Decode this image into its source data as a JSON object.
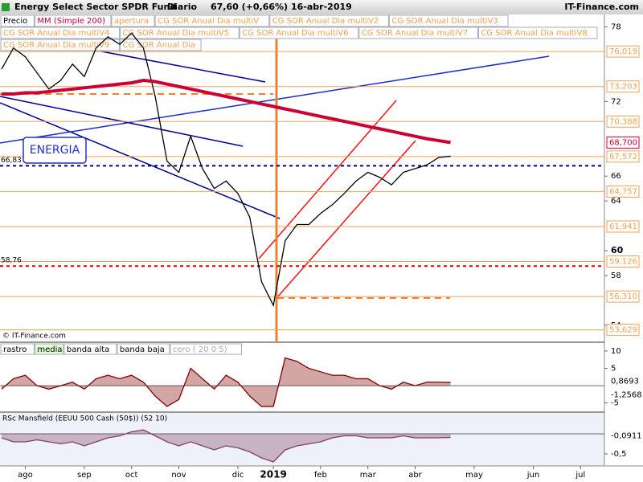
{
  "header": {
    "title": "Energy Select Sector SPDR Fund",
    "period": "Diario",
    "quote": "67,60 (+0,66%)",
    "date": "16-abr-2019",
    "brand": "IT-Finance.com"
  },
  "chart_data": [
    {
      "type": "line",
      "copyright": "© IT-Finance.com",
      "annotation": "ENERGIA",
      "indicators": [
        "apertura",
        "CG SOR Anual Dia multiV",
        "CG SOR Anual Dia multiV2",
        "CG SOR Anual Dia multiV3",
        "CG SOR Anual Dia multiV4",
        "CG SOR Anual Dia multiV5",
        "CG SOR Anual Dia multiV6",
        "CG SOR Anual Dia multiV7",
        "CG SOR Anual Dia multiV8",
        "CG SOR Anual Dia multiV9",
        "CG SOR Anual Dia"
      ],
      "categories": [
        null,
        null,
        "ago",
        null,
        null,
        null,
        null,
        "sep",
        null,
        null,
        null,
        "oct",
        null,
        null,
        null,
        "nov",
        null,
        null,
        null,
        null,
        "dic",
        null,
        null,
        "2019",
        null,
        null,
        null,
        "feb",
        null,
        null,
        null,
        "mar",
        null,
        null,
        null,
        "abr",
        null,
        null,
        null,
        null,
        "may",
        null,
        null,
        null,
        null,
        "jun",
        null,
        null,
        null,
        "jul",
        null
      ],
      "series": [
        {
          "name": "Precio",
          "color": "#000000",
          "values": [
            74.6,
            76.3,
            75.6,
            74.3,
            73,
            73.7,
            75,
            74,
            76.3,
            77.2,
            76.6,
            77.5,
            76.3,
            72.4,
            67.2,
            66.3,
            69.2,
            66.6,
            65,
            65.6,
            64.6,
            62.7,
            57.5,
            55.6,
            60.8,
            62.1,
            62.1,
            63,
            63.7,
            64.6,
            65.6,
            66.3,
            65.9,
            65.3,
            66.3,
            66.6,
            66.9,
            67.5,
            67.6,
            null,
            null,
            null,
            null,
            null,
            null,
            null,
            null,
            null,
            null,
            null,
            null
          ]
        },
        {
          "name": "MM (Simple 200)",
          "color": "#cc0033",
          "values": [
            72.6,
            72.6,
            72.7,
            72.7,
            72.8,
            72.9,
            73,
            73.1,
            73.2,
            73.3,
            73.4,
            73.5,
            73.7,
            73.6,
            73.4,
            73.2,
            73,
            72.8,
            72.6,
            72.4,
            72.2,
            72,
            71.8,
            71.6,
            71.4,
            71.2,
            71,
            70.8,
            70.6,
            70.4,
            70.2,
            70,
            69.8,
            69.6,
            69.4,
            69.2,
            69,
            68.85,
            68.7,
            null,
            null,
            null,
            null,
            null,
            null,
            null,
            null,
            null,
            null,
            null,
            null
          ]
        }
      ],
      "ma_label": {
        "value": 68.7,
        "label": "68,700"
      },
      "levels": [
        {
          "value": 76.019,
          "label": "76,019"
        },
        {
          "value": 73.203,
          "label": "73,203"
        },
        {
          "value": 70.388,
          "label": "70,388"
        },
        {
          "value": 67.572,
          "label": "67,572"
        },
        {
          "value": 64.757,
          "label": "64,757"
        },
        {
          "value": 61.941,
          "label": "61,941"
        },
        {
          "value": 59.126,
          "label": "59,126"
        },
        {
          "value": 56.31,
          "label": "56,310"
        },
        {
          "value": 53.629,
          "label": "53,629"
        }
      ],
      "level_color": "#f0a050",
      "reference_lines": [
        {
          "value": 66.83,
          "label": "66,83",
          "color": "#000080"
        },
        {
          "value": 58.76,
          "label": "58,76",
          "color": "#e00000"
        }
      ],
      "ylim": [
        52.7,
        79
      ],
      "yticks": [
        54,
        58,
        60,
        64,
        66,
        72,
        78
      ]
    },
    {
      "type": "area",
      "indicators": [
        "media",
        "banda alta",
        "banda baja",
        "cero ( 20 0 5)"
      ],
      "series": [
        {
          "name": "rastro",
          "color": "#800000",
          "values": [
            -1,
            2,
            3,
            0,
            -1,
            0,
            1,
            -1,
            2,
            3,
            2,
            3,
            1,
            -3,
            -6,
            -4,
            5,
            2,
            -1,
            3,
            1,
            -3,
            -6,
            -6,
            8,
            7,
            5,
            4,
            3,
            3,
            2,
            2,
            0,
            -1,
            1,
            0,
            1,
            1,
            0.9,
            null,
            null,
            null,
            null,
            null,
            null,
            null,
            null,
            null,
            null,
            null,
            null
          ]
        }
      ],
      "right_labels": [
        {
          "value": 0.8693,
          "label": "0,8693"
        },
        {
          "value": -1.2568,
          "label": "-1,2568"
        }
      ],
      "ylim": [
        -7.4,
        12.3
      ],
      "yticks": [
        10,
        5,
        -5
      ]
    },
    {
      "type": "area",
      "title": "RSc Mansfield (EEUU 500 Cash (50$)) (52 10)",
      "series": [
        {
          "color": "#804060",
          "values": [
            -0.1,
            -0.2,
            -0.2,
            -0.15,
            -0.2,
            -0.25,
            -0.2,
            -0.3,
            -0.2,
            -0.1,
            -0.05,
            0.05,
            0.1,
            -0.05,
            -0.2,
            -0.3,
            -0.2,
            -0.3,
            -0.4,
            -0.3,
            -0.35,
            -0.45,
            -0.6,
            -0.7,
            -0.4,
            -0.3,
            -0.25,
            -0.2,
            -0.1,
            -0.05,
            -0.05,
            -0.1,
            -0.1,
            -0.1,
            -0.05,
            -0.1,
            -0.1,
            -0.1,
            -0.09,
            null,
            null,
            null,
            null,
            null,
            null,
            null,
            null,
            null,
            null,
            null,
            null
          ]
        }
      ],
      "right_labels": [
        {
          "value": -0.0911,
          "label": "-0,0911"
        }
      ],
      "ylim": [
        -0.8,
        0.52
      ],
      "yticks": [
        {
          "value": -0.5,
          "label": "-0,5"
        }
      ]
    }
  ]
}
